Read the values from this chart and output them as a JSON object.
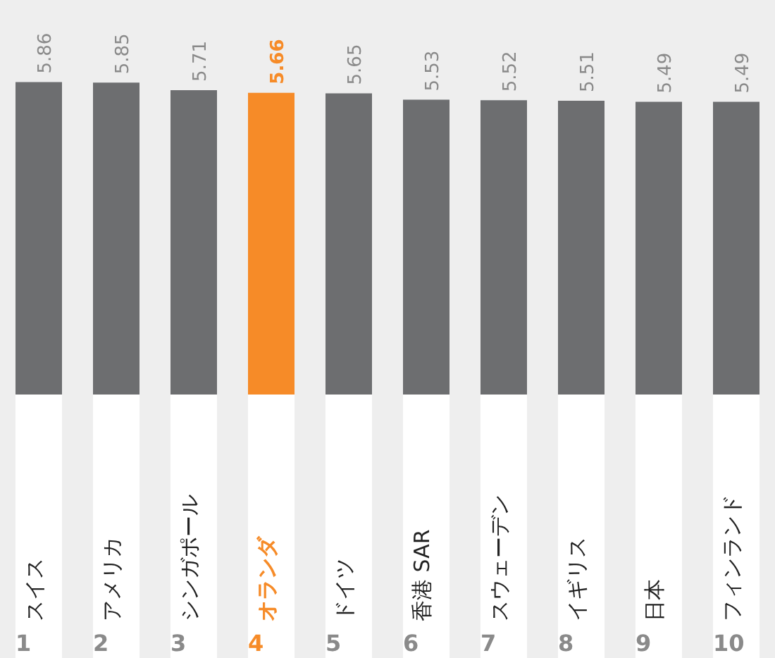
{
  "chart_data": {
    "type": "bar",
    "categories": [
      "スイス",
      "アメリカ",
      "シンガポール",
      "オランダ",
      "ドイツ",
      "香港 SAR",
      "スウェーデン",
      "イギリス",
      "日本",
      "フィンランド"
    ],
    "values": [
      5.86,
      5.85,
      5.71,
      5.66,
      5.65,
      5.53,
      5.52,
      5.51,
      5.49,
      5.49
    ],
    "colors": [
      "#6d6e70",
      "#6d6e70",
      "#6d6e70",
      "#f68b28",
      "#6d6e70",
      "#6d6e70",
      "#6d6e70",
      "#6d6e70",
      "#6d6e70",
      "#6d6e70"
    ],
    "ylim": [
      0,
      7.4
    ],
    "data_labels": true,
    "annotations": [
      "1",
      "2",
      "3",
      "4",
      "5",
      "6",
      "7",
      "8",
      "9",
      "10"
    ]
  }
}
